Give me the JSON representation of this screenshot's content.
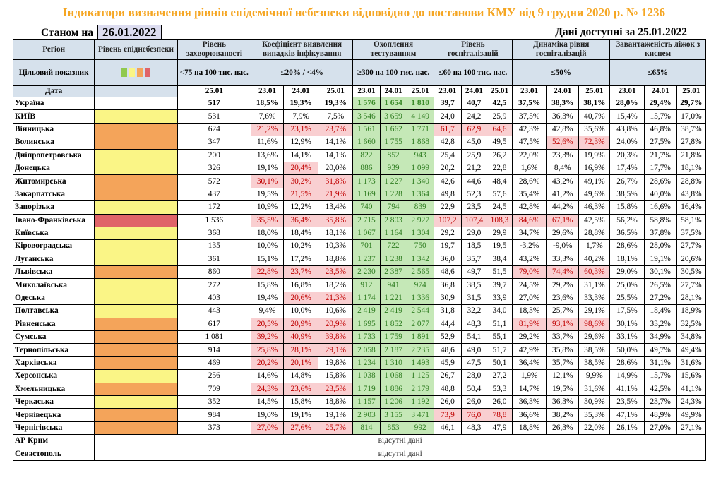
{
  "title": "Індикатори визначення рівнів епідемічної небезпеки відповідно до постанови КМУ від 9 грудня 2020 р. № 1236",
  "as_of_label": "Станом на",
  "as_of_date": "26.01.2022",
  "data_available": "Дані доступні за  25.01.2022",
  "headers": {
    "region": "Регіон",
    "level": "Рівень епіднебезпеки",
    "incidence": "Рівень захворюваності",
    "detection": "Коефіцієнт виявлення випадків інфікування",
    "testing": "Охоплення тестуванням",
    "hospital": "Рівень госпіталізацій",
    "hosp_dynamics": "Динаміка рівня госпіталізацій",
    "oxygen": "Завантаженість ліжок з киснем",
    "target": "Цільовий показник",
    "incidence_target": "<75 на 100 тис. нас.",
    "detection_target": "≤20% / <4%",
    "testing_target": "≥300 на 100 тис. нас.",
    "hospital_target": "≤60 на 100 тис. нас.",
    "hosp_dynamics_target": "≤50%",
    "oxygen_target": "≤65%",
    "date": "Дата",
    "incidence_date": "25.01",
    "dates": [
      "23.01",
      "24.01",
      "25.01"
    ]
  },
  "level_colors": {
    "yellow": "#FAF586",
    "orange": "#F4A45A",
    "red": "#E06469"
  },
  "target_swatches": [
    "#90C94E",
    "#FAF586",
    "#F4A45A",
    "#E06469"
  ],
  "rows": [
    {
      "region": "Україна",
      "level": "",
      "incidence": "517",
      "detection": [
        "18,5%",
        "19,3%",
        "19,3%"
      ],
      "testing": [
        "1 576",
        "1 654",
        "1 810"
      ],
      "hospital": [
        "39,7",
        "40,7",
        "42,5"
      ],
      "dynamics": [
        "37,5%",
        "38,3%",
        "38,1%"
      ],
      "oxygen": [
        "28,0%",
        "29,4%",
        "29,7%"
      ]
    },
    {
      "region": "КИЇВ",
      "level": "yellow",
      "incidence": "531",
      "detection": [
        "7,6%",
        "7,9%",
        "7,5%"
      ],
      "testing": [
        "3 546",
        "3 659",
        "4 149"
      ],
      "hospital": [
        "24,0",
        "24,2",
        "25,9"
      ],
      "dynamics": [
        "37,5%",
        "36,3%",
        "40,7%"
      ],
      "oxygen": [
        "15,4%",
        "15,7%",
        "17,0%"
      ]
    },
    {
      "region": "Вінницька",
      "level": "orange",
      "incidence": "624",
      "detection": [
        "21,2%",
        "23,1%",
        "23,7%"
      ],
      "testing": [
        "1 561",
        "1 662",
        "1 771"
      ],
      "hospital": [
        "61,7",
        "62,9",
        "64,6"
      ],
      "dynamics": [
        "42,3%",
        "42,8%",
        "35,6%"
      ],
      "oxygen": [
        "43,8%",
        "46,8%",
        "38,7%"
      ]
    },
    {
      "region": "Волинська",
      "level": "orange",
      "incidence": "347",
      "detection": [
        "11,6%",
        "12,9%",
        "14,1%"
      ],
      "testing": [
        "1 660",
        "1 755",
        "1 868"
      ],
      "hospital": [
        "42,8",
        "45,0",
        "49,5"
      ],
      "dynamics": [
        "47,5%",
        "52,6%",
        "72,3%"
      ],
      "oxygen": [
        "24,0%",
        "27,5%",
        "27,8%"
      ]
    },
    {
      "region": "Дніпропетровська",
      "level": "yellow",
      "incidence": "200",
      "detection": [
        "13,6%",
        "14,1%",
        "14,1%"
      ],
      "testing": [
        "822",
        "852",
        "943"
      ],
      "hospital": [
        "25,4",
        "25,9",
        "26,2"
      ],
      "dynamics": [
        "22,0%",
        "23,3%",
        "19,9%"
      ],
      "oxygen": [
        "20,3%",
        "21,7%",
        "21,8%"
      ]
    },
    {
      "region": "Донецька",
      "level": "yellow",
      "incidence": "326",
      "detection": [
        "19,1%",
        "20,4%",
        "20,0%"
      ],
      "testing": [
        "886",
        "939",
        "1 099"
      ],
      "hospital": [
        "20,2",
        "21,2",
        "22,8"
      ],
      "dynamics": [
        "1,6%",
        "8,4%",
        "16,9%"
      ],
      "oxygen": [
        "17,4%",
        "17,7%",
        "18,1%"
      ]
    },
    {
      "region": "Житомирська",
      "level": "orange",
      "incidence": "572",
      "detection": [
        "30,1%",
        "30,2%",
        "31,8%"
      ],
      "testing": [
        "1 173",
        "1 227",
        "1 340"
      ],
      "hospital": [
        "42,6",
        "44,6",
        "48,4"
      ],
      "dynamics": [
        "28,6%",
        "43,2%",
        "49,1%"
      ],
      "oxygen": [
        "26,7%",
        "28,6%",
        "28,8%"
      ]
    },
    {
      "region": "Закарпатська",
      "level": "orange",
      "incidence": "437",
      "detection": [
        "19,5%",
        "21,5%",
        "21,9%"
      ],
      "testing": [
        "1 169",
        "1 228",
        "1 364"
      ],
      "hospital": [
        "49,8",
        "52,3",
        "57,6"
      ],
      "dynamics": [
        "35,4%",
        "41,2%",
        "49,6%"
      ],
      "oxygen": [
        "38,5%",
        "40,0%",
        "43,8%"
      ]
    },
    {
      "region": "Запорізька",
      "level": "yellow",
      "incidence": "172",
      "detection": [
        "10,9%",
        "12,2%",
        "13,4%"
      ],
      "testing": [
        "740",
        "794",
        "839"
      ],
      "hospital": [
        "22,9",
        "23,5",
        "24,5"
      ],
      "dynamics": [
        "42,8%",
        "44,2%",
        "46,3%"
      ],
      "oxygen": [
        "15,8%",
        "16,6%",
        "16,4%"
      ]
    },
    {
      "region": "Івано-Франківська",
      "level": "red",
      "incidence": "1 536",
      "detection": [
        "35,5%",
        "36,4%",
        "35,8%"
      ],
      "testing": [
        "2 715",
        "2 803",
        "2 927"
      ],
      "hospital": [
        "107,2",
        "107,4",
        "108,3"
      ],
      "dynamics": [
        "84,6%",
        "67,1%",
        "42,5%"
      ],
      "oxygen": [
        "56,2%",
        "58,8%",
        "58,1%"
      ]
    },
    {
      "region": "Київська",
      "level": "yellow",
      "incidence": "368",
      "detection": [
        "18,0%",
        "18,4%",
        "18,1%"
      ],
      "testing": [
        "1 067",
        "1 164",
        "1 304"
      ],
      "hospital": [
        "29,2",
        "29,0",
        "29,9"
      ],
      "dynamics": [
        "34,7%",
        "29,6%",
        "28,8%"
      ],
      "oxygen": [
        "36,5%",
        "37,8%",
        "37,5%"
      ]
    },
    {
      "region": "Кіровоградська",
      "level": "yellow",
      "incidence": "135",
      "detection": [
        "10,0%",
        "10,2%",
        "10,3%"
      ],
      "testing": [
        "701",
        "722",
        "750"
      ],
      "hospital": [
        "19,7",
        "18,5",
        "19,5"
      ],
      "dynamics": [
        "-3,2%",
        "-9,0%",
        "1,7%"
      ],
      "oxygen": [
        "28,6%",
        "28,0%",
        "27,7%"
      ]
    },
    {
      "region": "Луганська",
      "level": "yellow",
      "incidence": "361",
      "detection": [
        "15,1%",
        "17,2%",
        "18,8%"
      ],
      "testing": [
        "1 237",
        "1 238",
        "1 342"
      ],
      "hospital": [
        "36,0",
        "35,7",
        "38,4"
      ],
      "dynamics": [
        "43,2%",
        "33,3%",
        "40,2%"
      ],
      "oxygen": [
        "18,1%",
        "19,1%",
        "20,6%"
      ]
    },
    {
      "region": "Львівська",
      "level": "orange",
      "incidence": "860",
      "detection": [
        "22,8%",
        "23,7%",
        "23,5%"
      ],
      "testing": [
        "2 230",
        "2 387",
        "2 565"
      ],
      "hospital": [
        "48,6",
        "49,7",
        "51,5"
      ],
      "dynamics": [
        "79,0%",
        "74,4%",
        "60,3%"
      ],
      "oxygen": [
        "29,0%",
        "30,1%",
        "30,5%"
      ]
    },
    {
      "region": "Миколаївська",
      "level": "yellow",
      "incidence": "272",
      "detection": [
        "15,8%",
        "16,8%",
        "18,2%"
      ],
      "testing": [
        "912",
        "941",
        "974"
      ],
      "hospital": [
        "36,8",
        "38,5",
        "39,7"
      ],
      "dynamics": [
        "24,5%",
        "29,2%",
        "31,1%"
      ],
      "oxygen": [
        "25,0%",
        "26,5%",
        "27,7%"
      ]
    },
    {
      "region": "Одеська",
      "level": "yellow",
      "incidence": "403",
      "detection": [
        "19,4%",
        "20,6%",
        "21,3%"
      ],
      "testing": [
        "1 174",
        "1 221",
        "1 336"
      ],
      "hospital": [
        "30,9",
        "31,5",
        "33,9"
      ],
      "dynamics": [
        "27,0%",
        "23,6%",
        "33,3%"
      ],
      "oxygen": [
        "25,5%",
        "27,2%",
        "28,1%"
      ]
    },
    {
      "region": "Полтавська",
      "level": "yellow",
      "incidence": "443",
      "detection": [
        "9,4%",
        "10,0%",
        "10,6%"
      ],
      "testing": [
        "2 419",
        "2 419",
        "2 544"
      ],
      "hospital": [
        "31,8",
        "32,2",
        "34,0"
      ],
      "dynamics": [
        "18,3%",
        "25,7%",
        "29,1%"
      ],
      "oxygen": [
        "17,5%",
        "18,4%",
        "18,9%"
      ]
    },
    {
      "region": "Рівненська",
      "level": "orange",
      "incidence": "617",
      "detection": [
        "20,5%",
        "20,9%",
        "20,9%"
      ],
      "testing": [
        "1 695",
        "1 852",
        "2 077"
      ],
      "hospital": [
        "44,4",
        "48,3",
        "51,1"
      ],
      "dynamics": [
        "81,9%",
        "93,1%",
        "98,6%"
      ],
      "oxygen": [
        "30,1%",
        "33,2%",
        "32,5%"
      ]
    },
    {
      "region": "Сумська",
      "level": "orange",
      "incidence": "1 081",
      "detection": [
        "39,2%",
        "40,9%",
        "39,8%"
      ],
      "testing": [
        "1 733",
        "1 759",
        "1 891"
      ],
      "hospital": [
        "52,9",
        "54,1",
        "55,1"
      ],
      "dynamics": [
        "29,2%",
        "33,7%",
        "29,6%"
      ],
      "oxygen": [
        "33,1%",
        "34,9%",
        "34,8%"
      ]
    },
    {
      "region": "Тернопільська",
      "level": "orange",
      "incidence": "914",
      "detection": [
        "25,8%",
        "28,1%",
        "29,1%"
      ],
      "testing": [
        "2 058",
        "2 187",
        "2 235"
      ],
      "hospital": [
        "48,6",
        "49,0",
        "51,7"
      ],
      "dynamics": [
        "42,9%",
        "35,8%",
        "38,5%"
      ],
      "oxygen": [
        "50,0%",
        "49,7%",
        "49,4%"
      ]
    },
    {
      "region": "Харківська",
      "level": "orange",
      "incidence": "469",
      "detection": [
        "20,2%",
        "20,1%",
        "19,8%"
      ],
      "testing": [
        "1 234",
        "1 310",
        "1 493"
      ],
      "hospital": [
        "45,9",
        "47,5",
        "50,1"
      ],
      "dynamics": [
        "36,4%",
        "35,7%",
        "38,5%"
      ],
      "oxygen": [
        "28,6%",
        "31,1%",
        "31,6%"
      ]
    },
    {
      "region": "Херсонська",
      "level": "yellow",
      "incidence": "256",
      "detection": [
        "14,6%",
        "14,8%",
        "15,8%"
      ],
      "testing": [
        "1 038",
        "1 068",
        "1 125"
      ],
      "hospital": [
        "26,7",
        "28,0",
        "27,2"
      ],
      "dynamics": [
        "1,9%",
        "12,1%",
        "9,9%"
      ],
      "oxygen": [
        "14,9%",
        "15,7%",
        "15,6%"
      ]
    },
    {
      "region": "Хмельницька",
      "level": "orange",
      "incidence": "709",
      "detection": [
        "24,3%",
        "23,6%",
        "23,5%"
      ],
      "testing": [
        "1 719",
        "1 886",
        "2 179"
      ],
      "hospital": [
        "48,8",
        "50,4",
        "53,3"
      ],
      "dynamics": [
        "14,7%",
        "19,5%",
        "31,6%"
      ],
      "oxygen": [
        "41,1%",
        "42,5%",
        "41,1%"
      ]
    },
    {
      "region": "Черкаська",
      "level": "yellow",
      "incidence": "352",
      "detection": [
        "14,5%",
        "15,8%",
        "18,8%"
      ],
      "testing": [
        "1 157",
        "1 206",
        "1 192"
      ],
      "hospital": [
        "26,0",
        "26,0",
        "26,0"
      ],
      "dynamics": [
        "36,3%",
        "36,3%",
        "30,9%"
      ],
      "oxygen": [
        "23,5%",
        "23,7%",
        "24,3%"
      ]
    },
    {
      "region": "Чернівецька",
      "level": "orange",
      "incidence": "984",
      "detection": [
        "19,0%",
        "19,1%",
        "19,1%"
      ],
      "testing": [
        "2 903",
        "3 155",
        "3 471"
      ],
      "hospital": [
        "73,9",
        "76,0",
        "78,8"
      ],
      "dynamics": [
        "36,6%",
        "38,2%",
        "35,3%"
      ],
      "oxygen": [
        "47,1%",
        "48,9%",
        "49,9%"
      ]
    },
    {
      "region": "Чернігівська",
      "level": "orange",
      "incidence": "373",
      "detection": [
        "27,0%",
        "27,6%",
        "25,7%"
      ],
      "testing": [
        "814",
        "853",
        "992"
      ],
      "hospital": [
        "46,1",
        "48,3",
        "47,9"
      ],
      "dynamics": [
        "18,8%",
        "26,3%",
        "22,0%"
      ],
      "oxygen": [
        "26,1%",
        "27,0%",
        "27,1%"
      ]
    }
  ],
  "missing_rows": [
    {
      "region": "АР Крим",
      "note": "відсутні дані"
    },
    {
      "region": "Севастополь",
      "note": "відсутні дані"
    }
  ]
}
